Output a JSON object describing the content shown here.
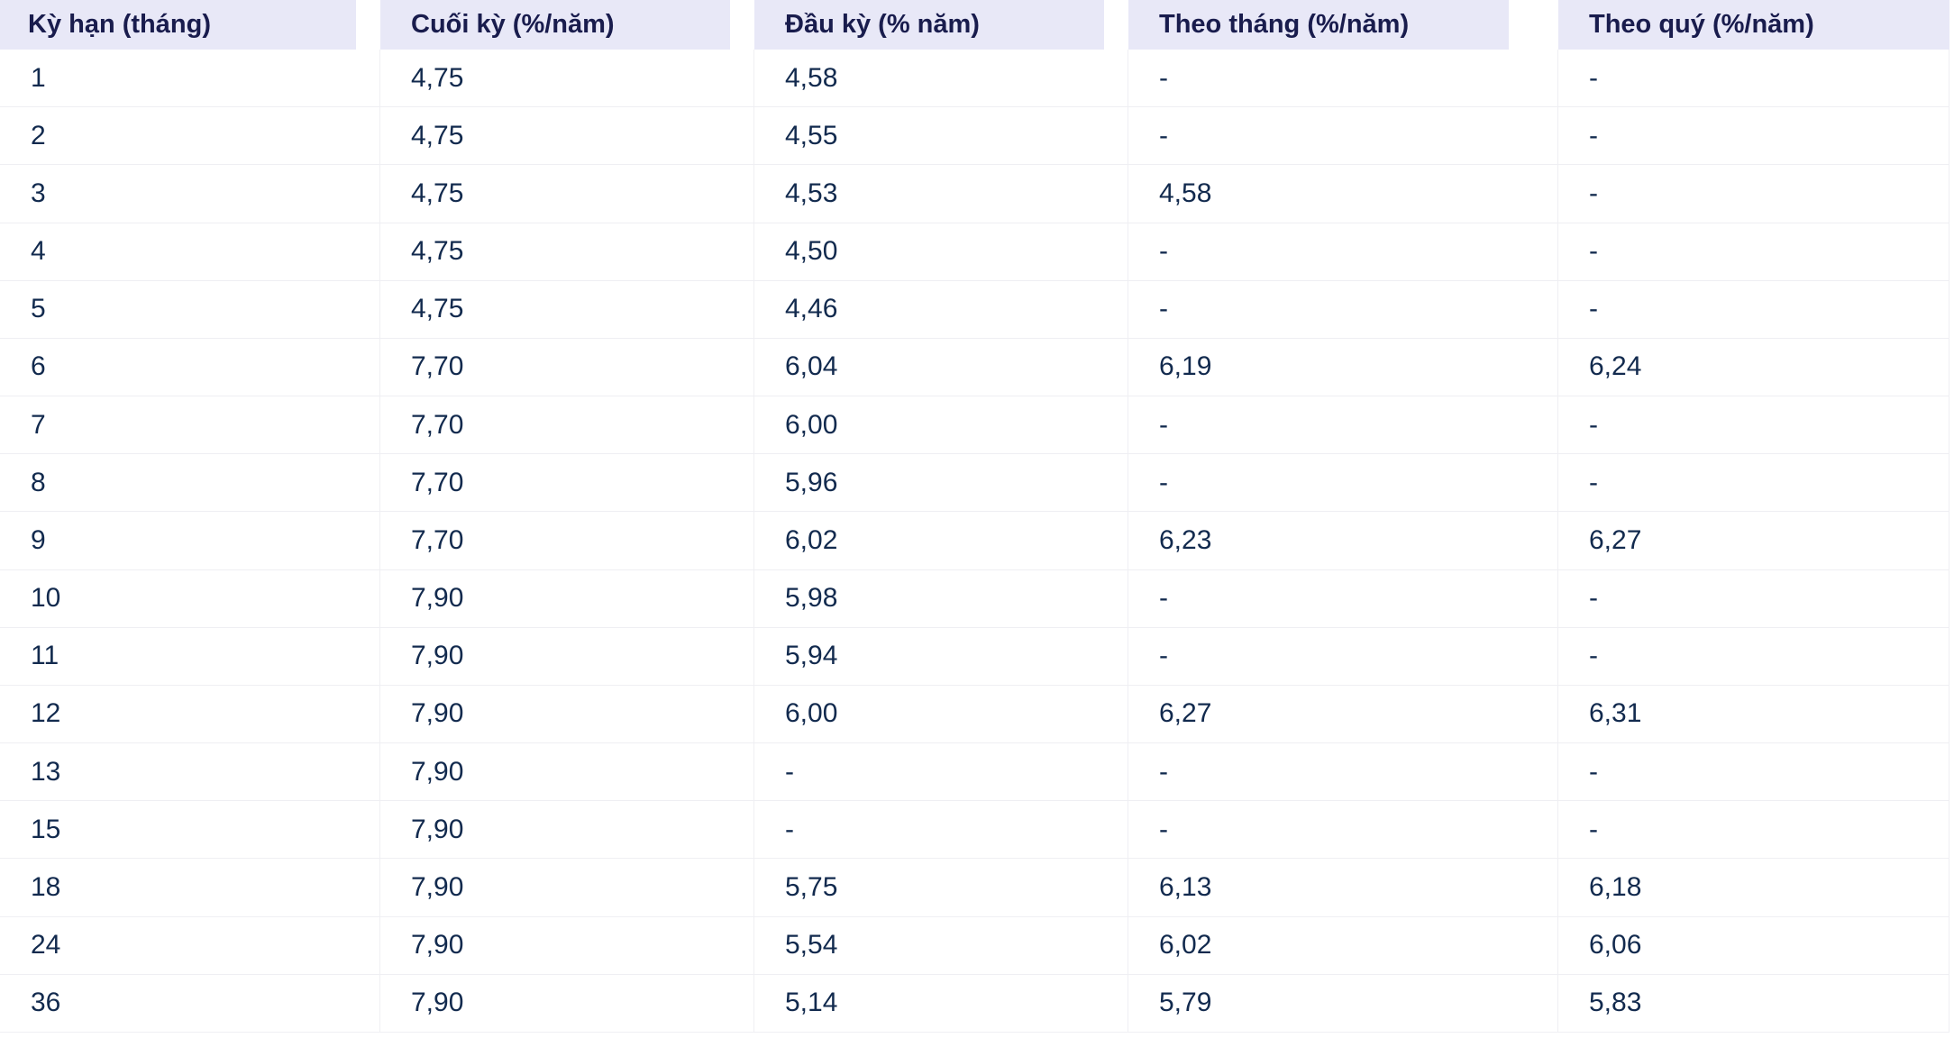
{
  "chart_data": {
    "type": "table",
    "title": "",
    "columns": [
      "Kỳ hạn (tháng)",
      "Cuối kỳ (%/năm)",
      "Đầu kỳ (% năm)",
      "Theo tháng (%/năm)",
      "Theo quý (%/năm)"
    ],
    "rows": [
      [
        "1",
        "4,75",
        "4,58",
        "-",
        "-"
      ],
      [
        "2",
        "4,75",
        "4,55",
        "-",
        "-"
      ],
      [
        "3",
        "4,75",
        "4,53",
        "4,58",
        "-"
      ],
      [
        "4",
        "4,75",
        "4,50",
        "-",
        "-"
      ],
      [
        "5",
        "4,75",
        "4,46",
        "-",
        "-"
      ],
      [
        "6",
        "7,70",
        "6,04",
        "6,19",
        "6,24"
      ],
      [
        "7",
        "7,70",
        "6,00",
        "-",
        "-"
      ],
      [
        "8",
        "7,70",
        "5,96",
        "-",
        "-"
      ],
      [
        "9",
        "7,70",
        "6,02",
        "6,23",
        "6,27"
      ],
      [
        "10",
        "7,90",
        "5,98",
        "-",
        "-"
      ],
      [
        "11",
        "7,90",
        "5,94",
        "-",
        "-"
      ],
      [
        "12",
        "7,90",
        "6,00",
        "6,27",
        "6,31"
      ],
      [
        "13",
        "7,90",
        "-",
        "-",
        "-"
      ],
      [
        "15",
        "7,90",
        "-",
        "-",
        "-"
      ],
      [
        "18",
        "7,90",
        "5,75",
        "6,13",
        "6,18"
      ],
      [
        "24",
        "7,90",
        "5,54",
        "6,02",
        "6,06"
      ],
      [
        "36",
        "7,90",
        "5,14",
        "5,79",
        "5,83"
      ]
    ],
    "layout": {
      "legend": "none",
      "grid": "hairline row and column separators",
      "header_style": "lavender cells separated by white gaps"
    }
  },
  "colors": {
    "header_bg": "#e8e8f7",
    "header_text": "#191c4d",
    "cell_text": "#122a4e",
    "border": "#efeff3",
    "background": "#ffffff"
  }
}
